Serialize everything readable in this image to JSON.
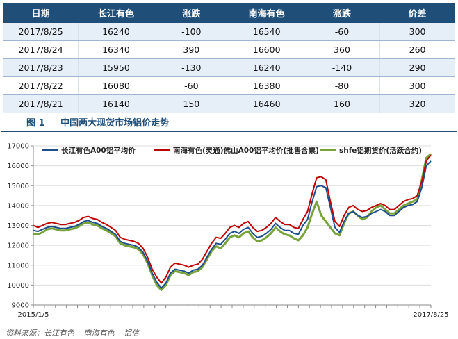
{
  "table": {
    "headers": [
      "日期",
      "长江有色",
      "涨跌",
      "南海有色",
      "涨跌",
      "价差"
    ],
    "rows": [
      [
        "2017/8/25",
        "16240",
        "-100",
        "16540",
        "-60",
        "300"
      ],
      [
        "2017/8/24",
        "16340",
        "390",
        "16600",
        "360",
        "260"
      ],
      [
        "2017/8/23",
        "15950",
        "-130",
        "16240",
        "-140",
        "290"
      ],
      [
        "2017/8/22",
        "16080",
        "-60",
        "16380",
        "-80",
        "300"
      ],
      [
        "2017/8/21",
        "16140",
        "150",
        "16460",
        "160",
        "320"
      ]
    ]
  },
  "figure": {
    "number": "图 1",
    "title": "中国两大现货市场铝价走势"
  },
  "source": [
    "资料来源：长江有色",
    "南海有色",
    "铝信"
  ],
  "colors": {
    "changjiang": "#1f4e8c",
    "nanhai": "#c00000",
    "shfe": "#77a33a",
    "header": "#1f4e79"
  },
  "chart_data": {
    "type": "line",
    "ylim": [
      9000,
      17000
    ],
    "yticks": [
      9000,
      10000,
      11000,
      12000,
      13000,
      14000,
      15000,
      16000,
      17000
    ],
    "xtick_labels": [
      "2015/1/5",
      "2017/8/25"
    ],
    "legend_position": "top",
    "series": [
      {
        "name": "长江有色A00铝平均价",
        "color": "#1f4e8c",
        "values": [
          12750,
          12700,
          12800,
          12900,
          12950,
          12900,
          12850,
          12850,
          12900,
          12950,
          13050,
          13200,
          13250,
          13150,
          13100,
          12950,
          12850,
          12700,
          12550,
          12200,
          12100,
          12050,
          12000,
          11900,
          11650,
          11200,
          10600,
          10150,
          9850,
          10100,
          10600,
          10800,
          10750,
          10700,
          10600,
          10750,
          10800,
          11000,
          11400,
          11800,
          12100,
          12050,
          12300,
          12600,
          12700,
          12600,
          12800,
          12900,
          12600,
          12400,
          12450,
          12600,
          12800,
          13100,
          12900,
          12750,
          12750,
          12600,
          12550,
          13000,
          13300,
          14200,
          14950,
          15000,
          14900,
          13900,
          12900,
          12650,
          13200,
          13600,
          13700,
          13500,
          13400,
          13450,
          13600,
          13700,
          13800,
          13700,
          13500,
          13500,
          13700,
          13900,
          14000,
          14050,
          14200,
          14900,
          16000,
          16240
        ]
      },
      {
        "name": "南海有色(灵通)佛山A00铝平均价(批售含票)",
        "color": "#c00000",
        "values": [
          13000,
          12900,
          13000,
          13100,
          13150,
          13100,
          13050,
          13050,
          13100,
          13150,
          13250,
          13400,
          13450,
          13350,
          13300,
          13150,
          13050,
          12900,
          12750,
          12400,
          12300,
          12250,
          12200,
          12100,
          11850,
          11400,
          10800,
          10400,
          10100,
          10400,
          10900,
          11100,
          11050,
          11000,
          10900,
          11000,
          11050,
          11300,
          11700,
          12100,
          12400,
          12350,
          12600,
          12900,
          13000,
          12900,
          13100,
          13200,
          12900,
          12700,
          12750,
          12900,
          13100,
          13400,
          13200,
          13050,
          13050,
          12900,
          12850,
          13300,
          13700,
          14600,
          15400,
          15450,
          15300,
          14200,
          13200,
          12950,
          13500,
          13900,
          14000,
          13800,
          13700,
          13750,
          13900,
          14000,
          14100,
          14000,
          13800,
          13800,
          14000,
          14200,
          14300,
          14350,
          14500,
          15200,
          16250,
          16540
        ]
      },
      {
        "name": "shfe铝期货价(活跃合约)",
        "color": "#77a33a",
        "values": [
          12550,
          12550,
          12650,
          12800,
          12850,
          12800,
          12750,
          12750,
          12800,
          12850,
          12950,
          13100,
          13150,
          13050,
          13000,
          12850,
          12750,
          12600,
          12450,
          12100,
          12000,
          11950,
          11900,
          11800,
          11550,
          11100,
          10500,
          10000,
          9750,
          10000,
          10500,
          10700,
          10650,
          10600,
          10500,
          10650,
          10700,
          10900,
          11300,
          11700,
          11950,
          11850,
          12100,
          12400,
          12500,
          12400,
          12600,
          12700,
          12400,
          12200,
          12250,
          12400,
          12600,
          12900,
          12700,
          12550,
          12500,
          12350,
          12250,
          12500,
          12900,
          13600,
          14200,
          13500,
          13200,
          12900,
          12600,
          12500,
          13100,
          13600,
          13700,
          13500,
          13300,
          13400,
          13700,
          13900,
          14000,
          13800,
          13600,
          13600,
          13800,
          14000,
          14100,
          14200,
          14300,
          15300,
          16400,
          16600
        ]
      }
    ]
  }
}
